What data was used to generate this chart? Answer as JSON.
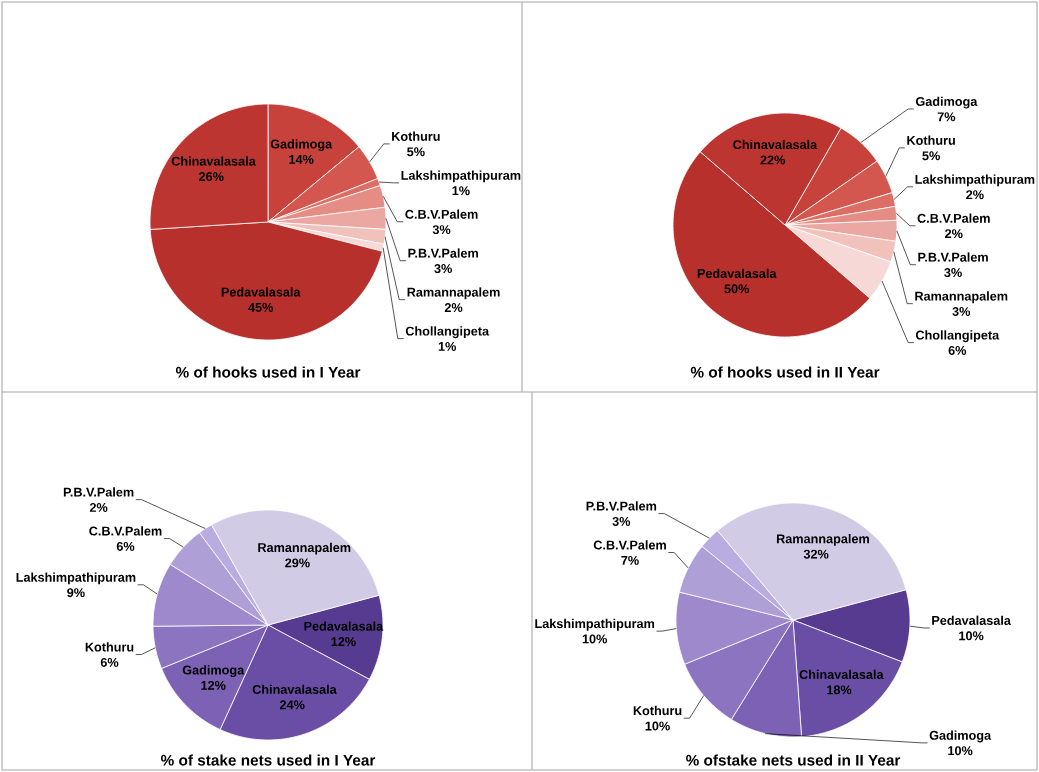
{
  "chart_data": [
    {
      "type": "pie",
      "title": "% of hooks used in I Year",
      "categories": [
        "Gadimoga",
        "Kothuru",
        "Lakshimpathipuram",
        "C.B.V.Palem",
        "P.B.V.Palem",
        "Ramannapalem",
        "Chollangipeta",
        "Pedavalasala",
        "Chinavalasala"
      ],
      "values": [
        14,
        5,
        1,
        3,
        3,
        2,
        1,
        45,
        26
      ],
      "value_labels": [
        "14%",
        "5%",
        "1%",
        "3%",
        "3%",
        "2%",
        "1%",
        "45%",
        "26%"
      ],
      "colors": [
        "#c8423c",
        "#d4574f",
        "#dc6e66",
        "#e58c84",
        "#eba7a1",
        "#f1c1bc",
        "#f6d9d6",
        "#b8302b",
        "#bd3530"
      ]
    },
    {
      "type": "pie",
      "title": "% of hooks used in II Year",
      "categories": [
        "Gadimoga",
        "Kothuru",
        "Lakshimpathipuram",
        "C.B.V.Palem",
        "P.B.V.Palem",
        "Ramannapalem",
        "Chollangipeta",
        "Pedavalasala",
        "Chinavalasala"
      ],
      "values": [
        7,
        5,
        2,
        2,
        3,
        3,
        6,
        50,
        22
      ],
      "value_labels": [
        "7%",
        "5%",
        "2%",
        "2%",
        "3%",
        "3%",
        "6%",
        "50%",
        "22%"
      ],
      "colors": [
        "#c8423c",
        "#d4574f",
        "#dc6e66",
        "#e58c84",
        "#eba7a1",
        "#f1c1bc",
        "#f6d9d6",
        "#b8302b",
        "#bd3530"
      ]
    },
    {
      "type": "pie",
      "title": "% of stake nets used in I Year",
      "categories": [
        "Pedavalasala",
        "Chinavalasala",
        "Gadimoga",
        "Kothuru",
        "Lakshimpathipuram",
        "C.B.V.Palem",
        "P.B.V.Palem",
        "Ramannapalem"
      ],
      "values": [
        12,
        24,
        12,
        6,
        9,
        6,
        2,
        29
      ],
      "value_labels": [
        "12%",
        "24%",
        "12%",
        "6%",
        "9%",
        "6%",
        "2%",
        "29%"
      ],
      "colors": [
        "#573b91",
        "#6a4ea6",
        "#7c61b4",
        "#8c74c0",
        "#9d89cb",
        "#ae9fd6",
        "#b9ace0",
        "#d2cbe6"
      ]
    },
    {
      "type": "pie",
      "title": "% ofstake nets used in II Year",
      "categories": [
        "Pedavalasala",
        "Chinavalasala",
        "Gadimoga",
        "Kothuru",
        "Lakshimpathipuram",
        "C.B.V.Palem",
        "P.B.V.Palem",
        "Ramannapalem"
      ],
      "values": [
        10,
        18,
        10,
        10,
        10,
        7,
        3,
        32
      ],
      "value_labels": [
        "10%",
        "18%",
        "10%",
        "10%",
        "10%",
        "7%",
        "3%",
        "32%"
      ],
      "colors": [
        "#573b91",
        "#6a4ea6",
        "#7c61b4",
        "#8c74c0",
        "#9d89cb",
        "#ae9fd6",
        "#b9ace0",
        "#d2cbe6"
      ]
    }
  ]
}
